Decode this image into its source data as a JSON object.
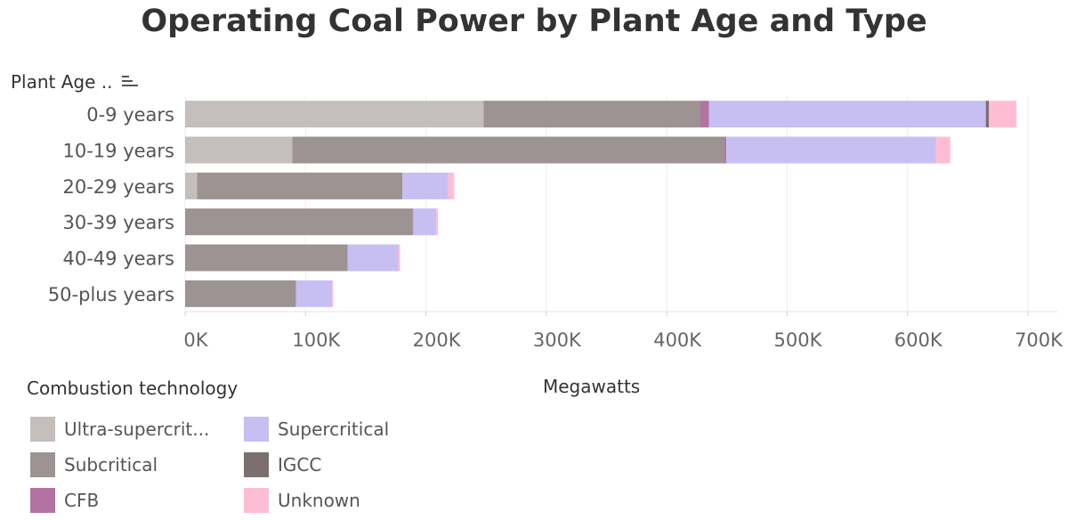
{
  "chart_data": {
    "type": "bar",
    "orientation": "horizontal",
    "stacked": true,
    "title": "Operating Coal Power by Plant Age and Type",
    "rows_header": "Plant Age ..",
    "xlabel": "Megawatts",
    "categories": [
      "0-9 years",
      "10-19 years",
      "20-29 years",
      "30-39 years",
      "40-49 years",
      "50-plus years"
    ],
    "xlim": [
      0,
      700000
    ],
    "xticks": [
      0,
      100000,
      200000,
      300000,
      400000,
      500000,
      600000,
      700000
    ],
    "xtick_labels": [
      "0K",
      "100K",
      "200K",
      "300K",
      "400K",
      "500K",
      "600K",
      "700K"
    ],
    "grid": true,
    "legend_title": "Combustion technology",
    "legend_position": "bottom-left",
    "series": [
      {
        "name": "Ultra-supercrit...",
        "color": "#c4bfbc",
        "values": [
          248000,
          89000,
          10000,
          0,
          0,
          0
        ]
      },
      {
        "name": "Subcritical",
        "color": "#9c9392",
        "values": [
          180000,
          359000,
          170000,
          189000,
          135000,
          92000
        ]
      },
      {
        "name": "CFB",
        "color": "#b273a3",
        "values": [
          7000,
          1500,
          500,
          500,
          0,
          0
        ]
      },
      {
        "name": "Supercritical",
        "color": "#c7bff2",
        "values": [
          230000,
          174000,
          38000,
          19000,
          42000,
          30000
        ]
      },
      {
        "name": "IGCC",
        "color": "#7b6f6f",
        "values": [
          2500,
          0,
          0,
          0,
          0,
          0
        ]
      },
      {
        "name": "Unknown",
        "color": "#ffbdd3",
        "values": [
          23000,
          12000,
          5000,
          1500,
          1500,
          1000
        ]
      }
    ],
    "legend_order": [
      "Ultra-supercrit...",
      "Supercritical",
      "Subcritical",
      "IGCC",
      "CFB",
      "Unknown"
    ]
  }
}
